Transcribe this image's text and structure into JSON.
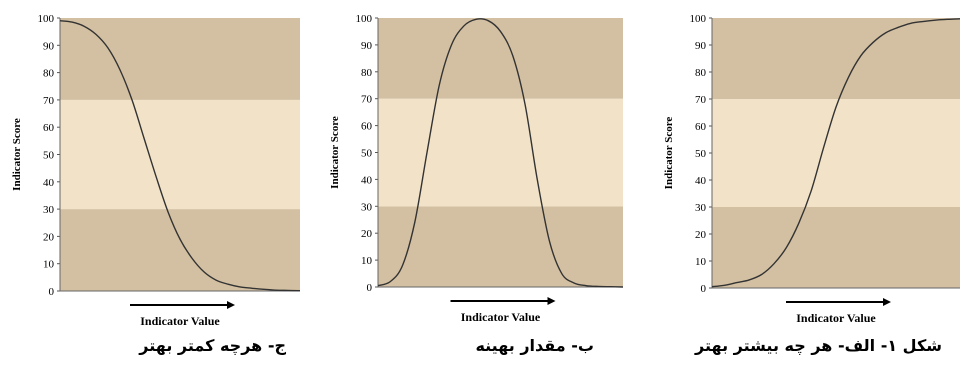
{
  "chart_data": [
    {
      "type": "line",
      "caption": "ج- هرچه کمتر بهتر",
      "xlabel": "Indicator Value",
      "ylabel": "Indicator Score",
      "ylim": [
        0,
        100
      ],
      "yticks": [
        0,
        10,
        20,
        30,
        40,
        50,
        60,
        70,
        80,
        90,
        100
      ],
      "bands": [
        {
          "from": 0,
          "to": 30,
          "color": "#d3c0a2"
        },
        {
          "from": 30,
          "to": 70,
          "color": "#f2e3c8"
        },
        {
          "from": 70,
          "to": 100,
          "color": "#d3c0a2"
        }
      ],
      "x": [
        0,
        5,
        10,
        15,
        20,
        25,
        30,
        35,
        40,
        45,
        50,
        55,
        60,
        65,
        70,
        75,
        80,
        85,
        90,
        95,
        100
      ],
      "y": [
        99,
        98.5,
        97,
        94,
        89,
        81,
        70,
        56,
        42,
        29,
        19,
        12,
        7,
        4,
        2.5,
        1.5,
        1,
        0.6,
        0.3,
        0.2,
        0.1
      ]
    },
    {
      "type": "line",
      "caption": "ب- مقدار بهینه",
      "xlabel": "Indicator Value",
      "ylabel": "Indicator Score",
      "ylim": [
        0,
        100
      ],
      "yticks": [
        0,
        10,
        20,
        30,
        40,
        50,
        60,
        70,
        80,
        90,
        100
      ],
      "bands": [
        {
          "from": 0,
          "to": 30,
          "color": "#d3c0a2"
        },
        {
          "from": 30,
          "to": 70,
          "color": "#f2e3c8"
        },
        {
          "from": 70,
          "to": 100,
          "color": "#d3c0a2"
        }
      ],
      "x": [
        0,
        5,
        10,
        15,
        20,
        25,
        30,
        35,
        40,
        45,
        50,
        55,
        60,
        65,
        70,
        75,
        80,
        85,
        90,
        95,
        100
      ],
      "y": [
        0.5,
        2,
        8,
        24,
        50,
        75,
        90,
        97,
        99.5,
        99,
        95,
        86,
        68,
        40,
        17,
        5,
        1.5,
        0.5,
        0.2,
        0.1,
        0
      ]
    },
    {
      "type": "line",
      "caption": "شکل ۱- الف- هر چه بیشتر بهتر",
      "xlabel": "Indicator Value",
      "ylabel": "Indicator Score",
      "ylim": [
        0,
        100
      ],
      "yticks": [
        0,
        10,
        20,
        30,
        40,
        50,
        60,
        70,
        80,
        90,
        100
      ],
      "bands": [
        {
          "from": 0,
          "to": 30,
          "color": "#d3c0a2"
        },
        {
          "from": 30,
          "to": 70,
          "color": "#f2e3c8"
        },
        {
          "from": 70,
          "to": 100,
          "color": "#d3c0a2"
        }
      ],
      "x": [
        0,
        5,
        10,
        15,
        20,
        25,
        30,
        35,
        40,
        45,
        50,
        55,
        60,
        65,
        70,
        75,
        80,
        85,
        90,
        95,
        100
      ],
      "y": [
        0.5,
        1,
        2,
        3,
        5,
        9,
        15,
        24,
        36,
        52,
        67,
        78,
        86,
        91,
        94.5,
        96.5,
        98,
        98.7,
        99.2,
        99.5,
        99.7
      ]
    }
  ]
}
